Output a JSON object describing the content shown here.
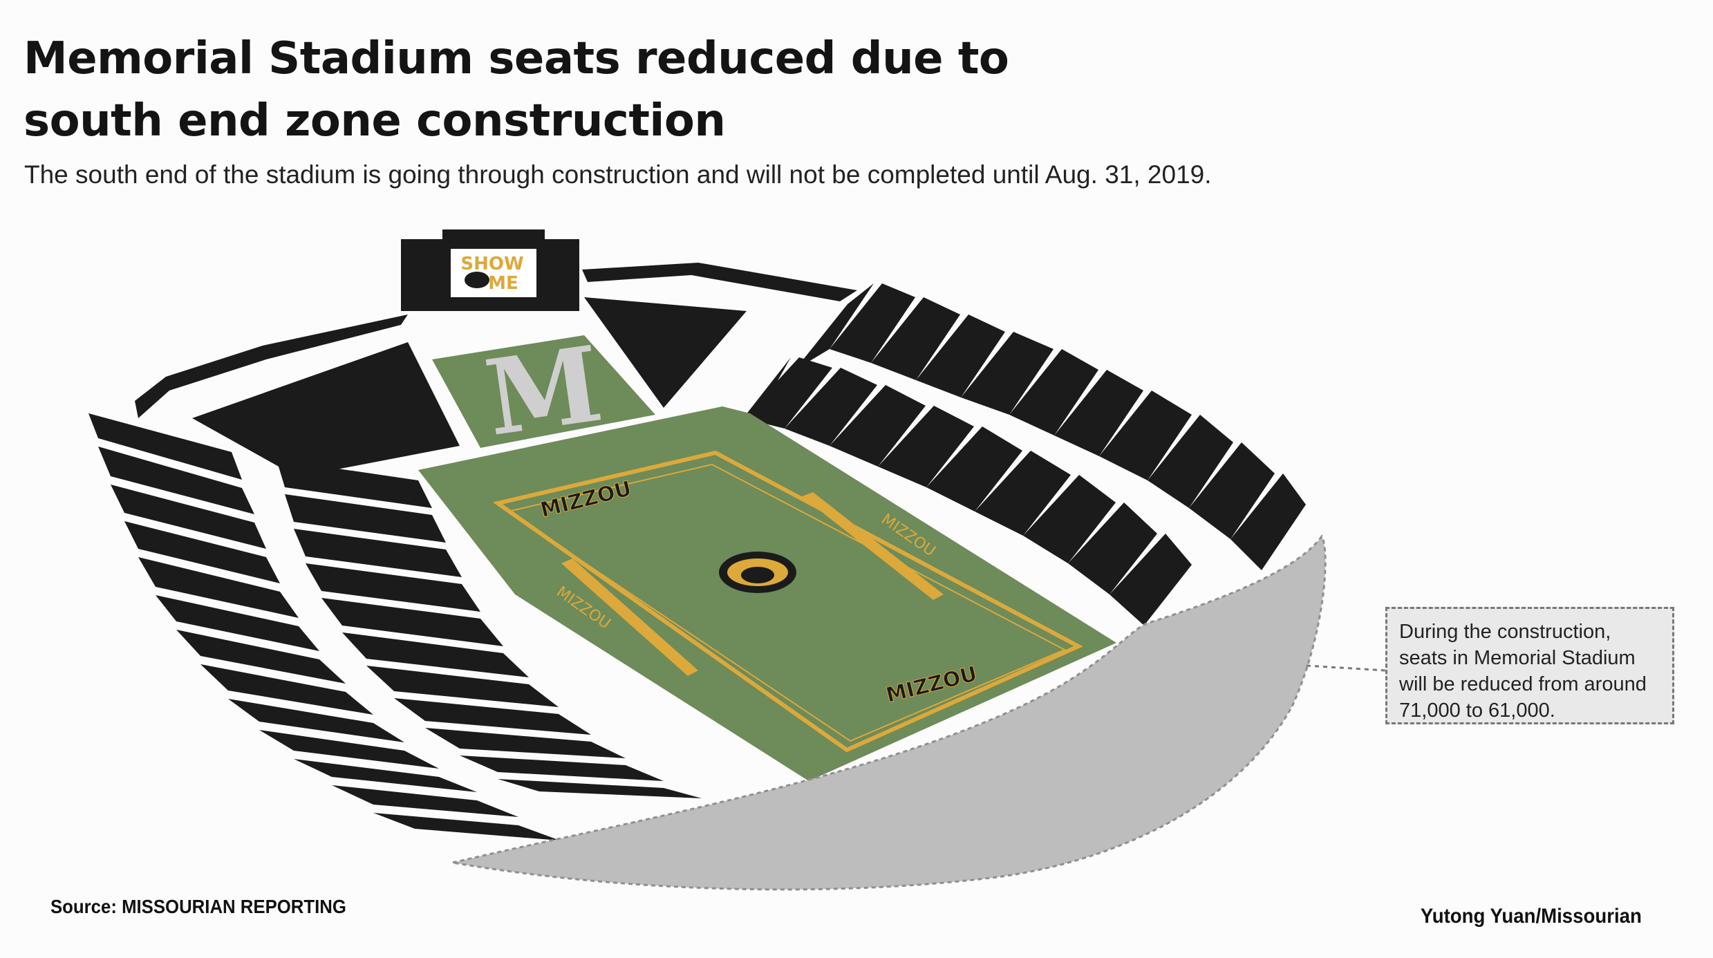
{
  "title": "Memorial Stadium seats reduced due to south end zone construction",
  "subtitle": "The south end of the stadium is going through construction and will not be completed until Aug. 31, 2019.",
  "callout": "During the construction, seats in Memorial Stadium will be reduced from around 71,000 to 61,000.",
  "source": "Source: MISSOURIAN REPORTING",
  "credit": "Yutong Yuan/Missourian",
  "scoreboard": {
    "line1": "SHOW",
    "line2": "ME"
  },
  "field": {
    "midfield_logo": "tiger-head-logo",
    "hill_letter": "M",
    "end_zone_word": "MIZZOU",
    "sideline_word": "MIZZOU"
  },
  "colors": {
    "seats": "#1b1b1b",
    "field_green": "#6e8b5a",
    "gold": "#dca93a",
    "construction_zone": "#bdbdbd",
    "background": "#fdfcfd"
  }
}
